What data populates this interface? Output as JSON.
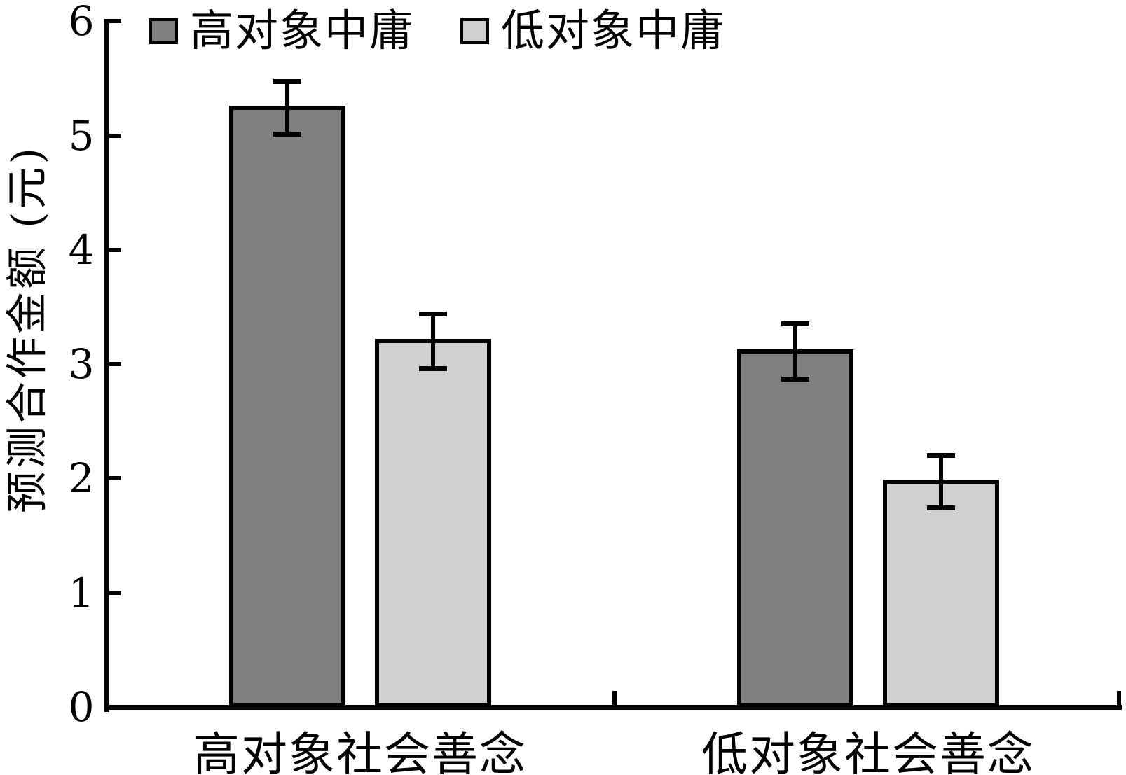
{
  "chart_data": {
    "type": "bar",
    "title": "",
    "categories": [
      "高对象社会善念",
      "低对象社会善念"
    ],
    "series": [
      {
        "name": "高对象中庸",
        "values": [
          5.24,
          3.11
        ],
        "errors": [
          0.23,
          0.24
        ],
        "color": "#808080"
      },
      {
        "name": "低对象中庸",
        "values": [
          3.2,
          1.97
        ],
        "errors": [
          0.24,
          0.23
        ],
        "color": "#d0d0d0"
      }
    ],
    "ylabel": "预测合作金额 (元)",
    "xlabel": "",
    "ylim": [
      0,
      6
    ],
    "yticks": [
      0,
      1,
      2,
      3,
      4,
      5,
      6
    ],
    "grid": false,
    "legend_position": "top",
    "error_bars": true,
    "colors": {
      "axis": "#000000",
      "bar_outline": "#000000",
      "series_dark": "#808080",
      "series_light": "#d0d0d0",
      "background": "#ffffff"
    }
  }
}
